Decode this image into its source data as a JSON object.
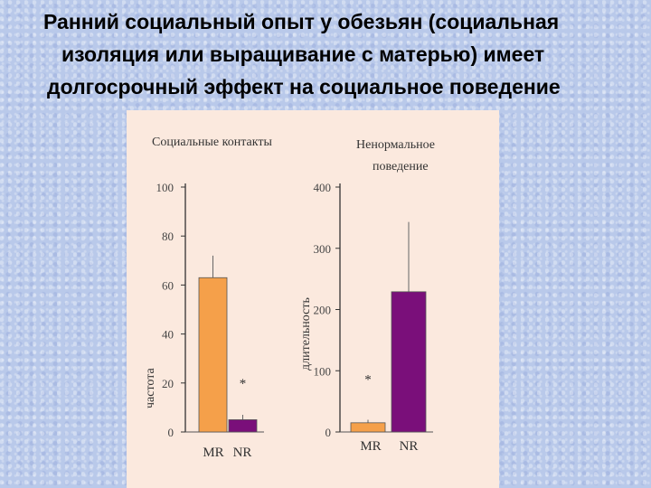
{
  "slide": {
    "title_lines": [
      "Ранний социальный опыт у обезьян (социальная",
      "изоляция или выращивание с матерью) имеет",
      "долгосрочный эффект  на социальное поведение"
    ]
  },
  "colors": {
    "MR": "#f5a04a",
    "NR": "#7a0f7a",
    "panel_bg": "#fbe9de"
  },
  "chart_data": [
    {
      "type": "bar",
      "title": "Социальные контакты",
      "ylabel": "частота",
      "xlabel": "",
      "categories": [
        "MR",
        "NR"
      ],
      "values": [
        63,
        5
      ],
      "error_upper": [
        72,
        7
      ],
      "ylim": [
        0,
        100
      ],
      "yticks": [
        0,
        20,
        40,
        60,
        80,
        100
      ],
      "significance_marker": {
        "category": "NR",
        "text": "*"
      }
    },
    {
      "type": "bar",
      "title": "Ненормальное поведение",
      "ylabel": "длительность",
      "xlabel": "",
      "categories": [
        "MR",
        "NR"
      ],
      "values": [
        15,
        229
      ],
      "error_upper": [
        20,
        343
      ],
      "ylim": [
        0,
        400
      ],
      "yticks": [
        0,
        100,
        200,
        300,
        400
      ],
      "significance_marker": {
        "category": "MR",
        "text": "*"
      }
    }
  ]
}
